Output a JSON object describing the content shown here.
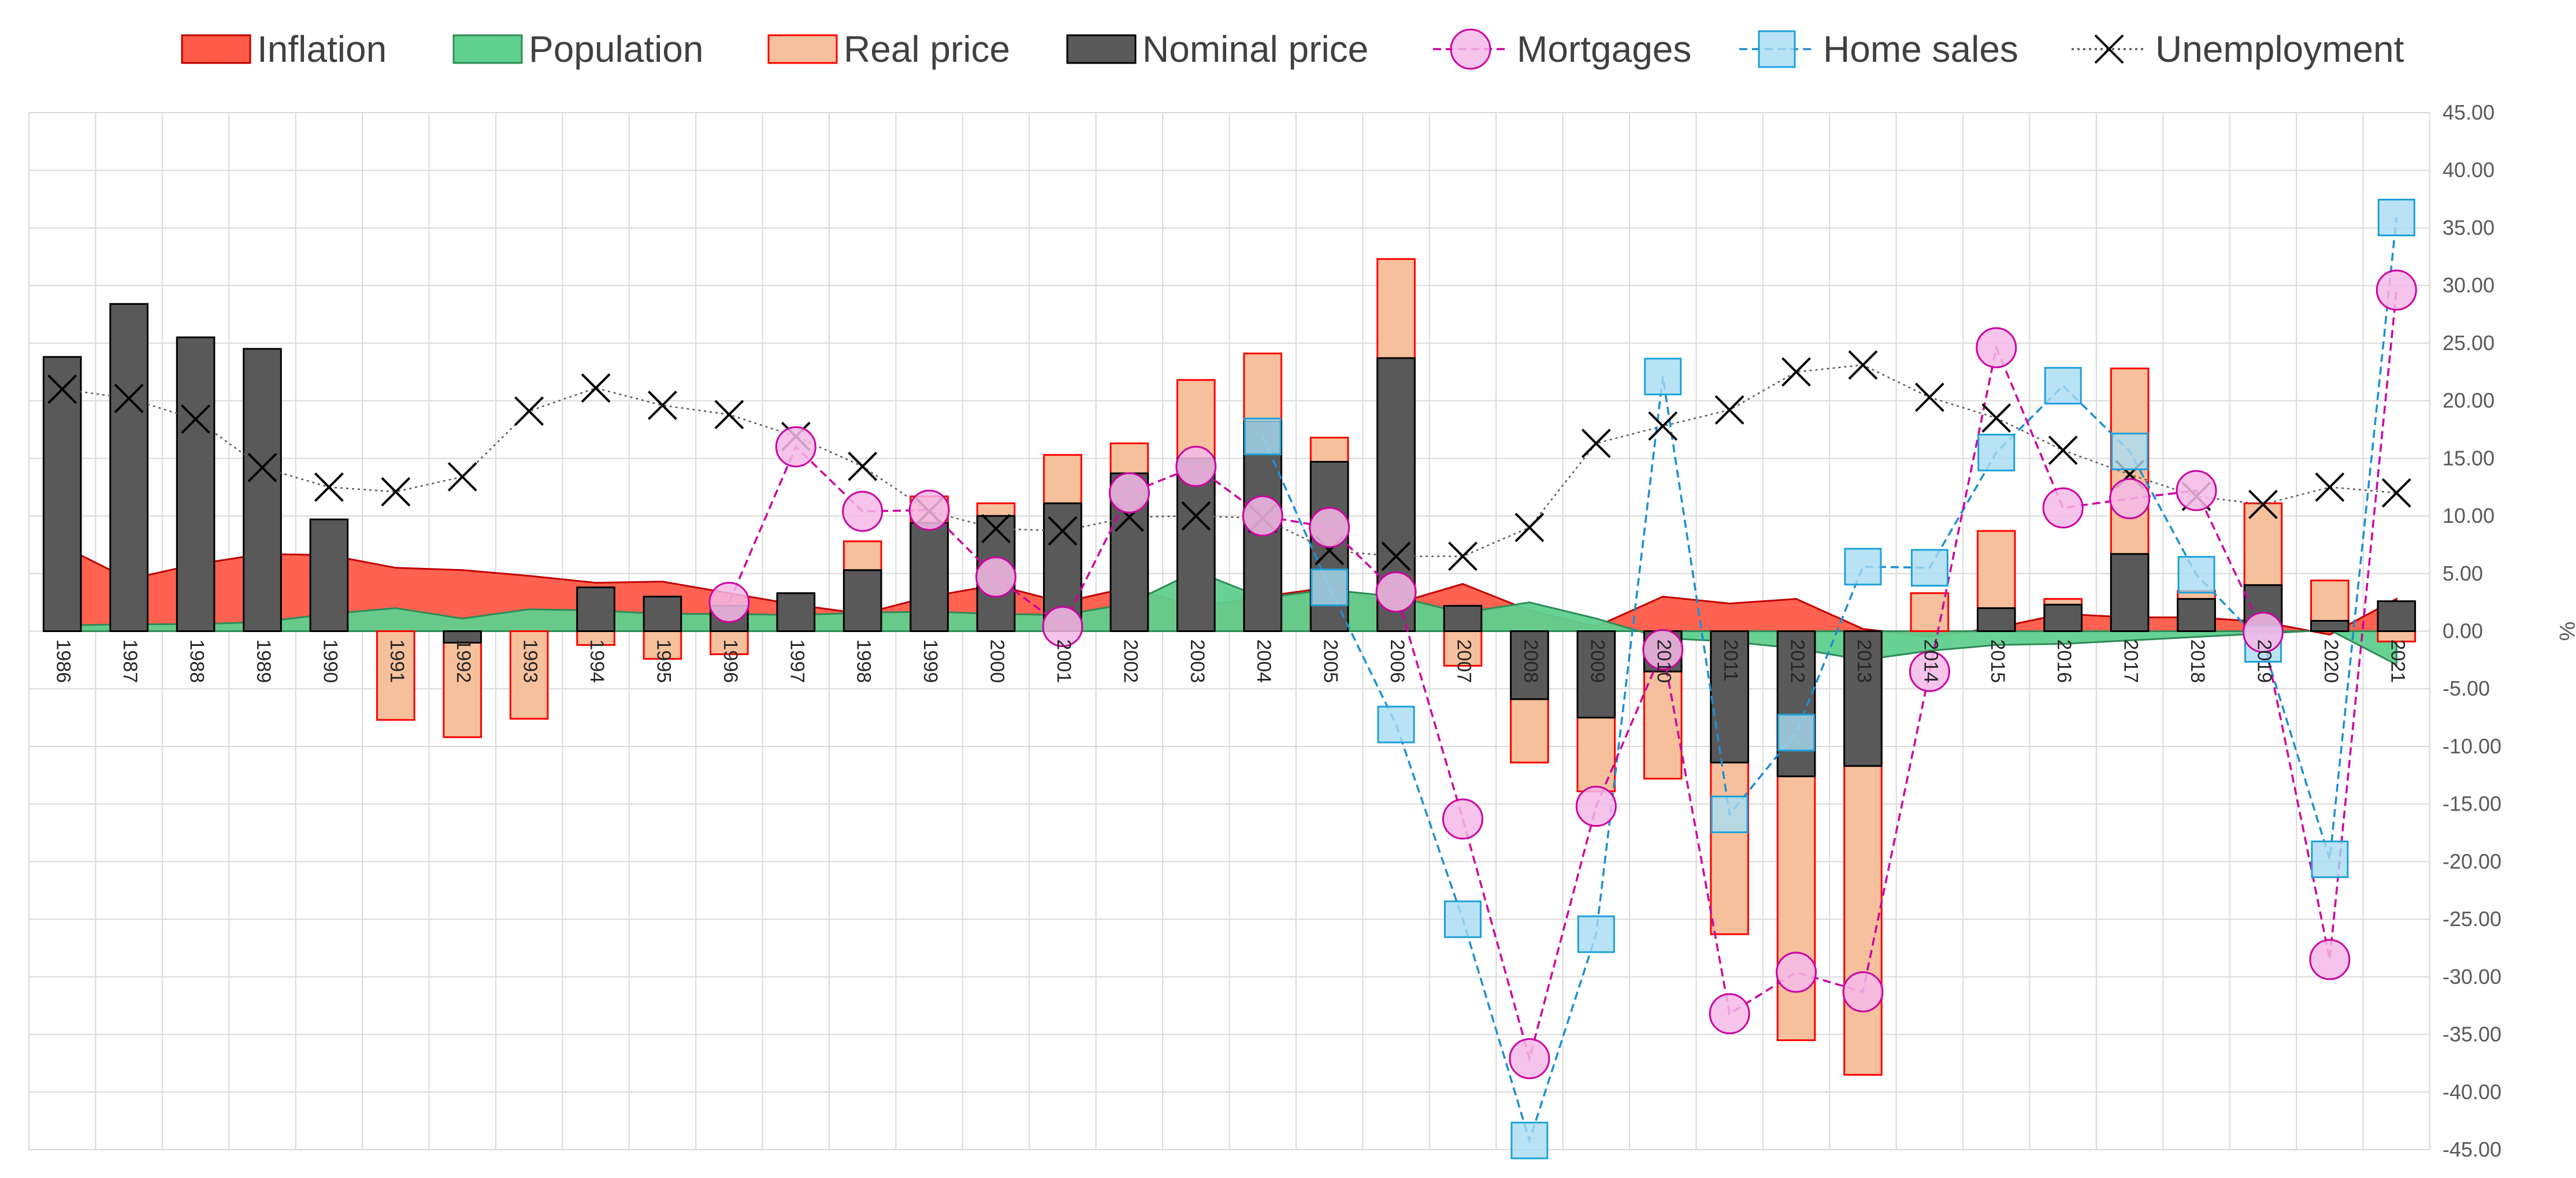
{
  "chart_data": {
    "type": "combo",
    "years": [
      "1986",
      "1987",
      "1988",
      "1989",
      "1990",
      "1991",
      "1992",
      "1993",
      "1994",
      "1995",
      "1996",
      "1997",
      "1998",
      "1999",
      "2000",
      "2001",
      "2002",
      "2003",
      "2004",
      "2005",
      "2006",
      "2007",
      "2008",
      "2009",
      "2010",
      "2011",
      "2012",
      "2013",
      "2014",
      "2015",
      "2016",
      "2017",
      "2018",
      "2019",
      "2020",
      "2021"
    ],
    "y_axis": {
      "min": -45,
      "max": 45,
      "step": 5,
      "unit_label": "%",
      "ticks": [
        "45.00",
        "40.00",
        "35.00",
        "30.00",
        "25.00",
        "20.00",
        "15.00",
        "10.00",
        "5.00",
        "0.00",
        "-5.00",
        "-10.00",
        "-15.00",
        "-20.00",
        "-25.00",
        "-30.00",
        "-35.00",
        "-40.00",
        "-45.00"
      ]
    },
    "grid": true,
    "legend_position": "top",
    "series": [
      {
        "name": "Inflation",
        "kind": "area",
        "fill": "#ff5a47",
        "stroke": "#c00000",
        "values": [
          7.4,
          4.5,
          5.8,
          6.7,
          6.6,
          5.5,
          5.3,
          4.8,
          4.2,
          4.3,
          3.3,
          2.3,
          1.5,
          3.0,
          4.0,
          2.5,
          3.8,
          2.1,
          3.0,
          3.8,
          2.4,
          4.1,
          1.8,
          0.4,
          3.0,
          2.4,
          2.8,
          0.2,
          -0.5,
          0.3,
          1.5,
          1.2,
          1.2,
          0.8,
          -0.3,
          2.8
        ]
      },
      {
        "name": "Population",
        "kind": "area",
        "fill": "#5fd08e",
        "stroke": "#2e8b57",
        "values": [
          0.5,
          0.6,
          0.6,
          0.8,
          1.5,
          2.0,
          1.1,
          1.9,
          1.8,
          1.5,
          1.5,
          1.4,
          1.6,
          1.7,
          1.5,
          1.4,
          2.4,
          5.2,
          2.9,
          3.6,
          3.0,
          1.6,
          2.5,
          1.1,
          -0.6,
          -0.9,
          -1.5,
          -2.5,
          -1.7,
          -1.2,
          -1.1,
          -0.8,
          -0.5,
          -0.2,
          0.1,
          -2.9
        ]
      },
      {
        "name": "Real price",
        "kind": "bar",
        "fill": "#f6c09c",
        "stroke": "#ff0000",
        "values": [
          null,
          null,
          null,
          null,
          null,
          -7.7,
          -9.2,
          -7.6,
          -1.2,
          -2.4,
          -2.0,
          null,
          7.8,
          11.7,
          11.1,
          15.3,
          16.3,
          21.8,
          24.1,
          16.8,
          32.3,
          -3.0,
          -11.4,
          -13.9,
          -12.8,
          -26.3,
          -35.5,
          -38.5,
          3.3,
          8.7,
          2.8,
          22.8,
          3.5,
          11.1,
          4.4,
          -0.9
        ]
      },
      {
        "name": "Nominal price",
        "kind": "bar",
        "fill": "#595959",
        "stroke": "#000000",
        "values": [
          23.8,
          28.4,
          25.5,
          24.5,
          9.7,
          null,
          -1.0,
          null,
          3.8,
          3.0,
          2.2,
          3.3,
          5.3,
          9.4,
          10.0,
          11.1,
          13.7,
          15.0,
          18.2,
          14.7,
          23.7,
          2.2,
          -5.9,
          -7.5,
          -3.5,
          -11.4,
          -12.6,
          -11.7,
          null,
          2.0,
          2.3,
          6.7,
          2.8,
          4.0,
          0.9,
          2.6
        ]
      },
      {
        "name": "Mortgages",
        "kind": "line",
        "color": "#cc00a0",
        "marker": "circle",
        "values": [
          null,
          null,
          null,
          null,
          null,
          null,
          null,
          null,
          null,
          null,
          2.5,
          16.0,
          10.4,
          10.5,
          4.7,
          0.4,
          12.0,
          14.3,
          10.0,
          9.0,
          3.4,
          -16.3,
          -37.1,
          -15.2,
          -1.6,
          -33.2,
          -29.6,
          -31.3,
          -3.5,
          24.6,
          10.7,
          11.5,
          12.2,
          -0.1,
          -28.5,
          29.6
        ]
      },
      {
        "name": "Home sales",
        "kind": "line",
        "color": "#1b8fd3",
        "marker": "square",
        "values": [
          null,
          null,
          null,
          null,
          null,
          null,
          null,
          null,
          null,
          null,
          null,
          null,
          null,
          null,
          null,
          null,
          null,
          null,
          16.9,
          3.8,
          -8.1,
          -25.0,
          -44.2,
          -26.3,
          22.1,
          -15.9,
          -8.8,
          5.6,
          5.5,
          15.5,
          21.3,
          15.6,
          4.9,
          -1.1,
          -19.8,
          35.9
        ]
      },
      {
        "name": "Unemployment",
        "kind": "line",
        "color": "#595959",
        "marker": "x",
        "values": [
          21.0,
          20.2,
          18.4,
          14.2,
          12.5,
          12.1,
          13.4,
          19.1,
          21.1,
          19.6,
          18.8,
          16.9,
          14.3,
          10.4,
          8.9,
          8.7,
          9.9,
          10.0,
          9.8,
          7.0,
          6.5,
          6.5,
          9.0,
          16.3,
          17.8,
          19.2,
          22.5,
          23.1,
          20.3,
          18.5,
          15.7,
          13.6,
          11.7,
          11.0,
          12.5,
          12.0
        ]
      }
    ]
  }
}
